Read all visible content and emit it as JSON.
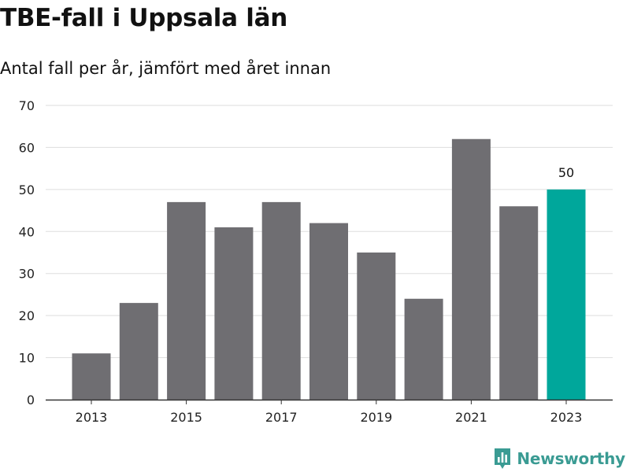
{
  "title": "TBE-fall i Uppsala län",
  "subtitle": "Antal fall per år, jämfört med året innan",
  "brand": {
    "name": "Newsworthy",
    "logo_icon": "bar-chart-pin-icon",
    "color": "#3a9b93"
  },
  "chart_data": {
    "type": "bar",
    "title": "TBE-fall i Uppsala län",
    "subtitle": "Antal fall per år, jämfört med året innan",
    "xlabel": "",
    "ylabel": "",
    "categories": [
      "2013",
      "2014",
      "2015",
      "2016",
      "2017",
      "2018",
      "2019",
      "2020",
      "2021",
      "2022",
      "2023"
    ],
    "values": [
      11,
      23,
      47,
      41,
      47,
      42,
      35,
      24,
      62,
      46,
      50
    ],
    "x_tick_labels": [
      "2013",
      "2015",
      "2017",
      "2019",
      "2021",
      "2023"
    ],
    "y_ticks": [
      0,
      10,
      20,
      30,
      40,
      50,
      60,
      70
    ],
    "ylim": [
      0,
      70
    ],
    "grid": "horizontal",
    "highlight_category": "2023",
    "data_labels": [
      {
        "category": "2023",
        "text": "50"
      }
    ],
    "colors": {
      "bar": "#6f6e72",
      "highlight": "#00a79b",
      "grid": "#dddddd",
      "axis": "#333333"
    }
  }
}
